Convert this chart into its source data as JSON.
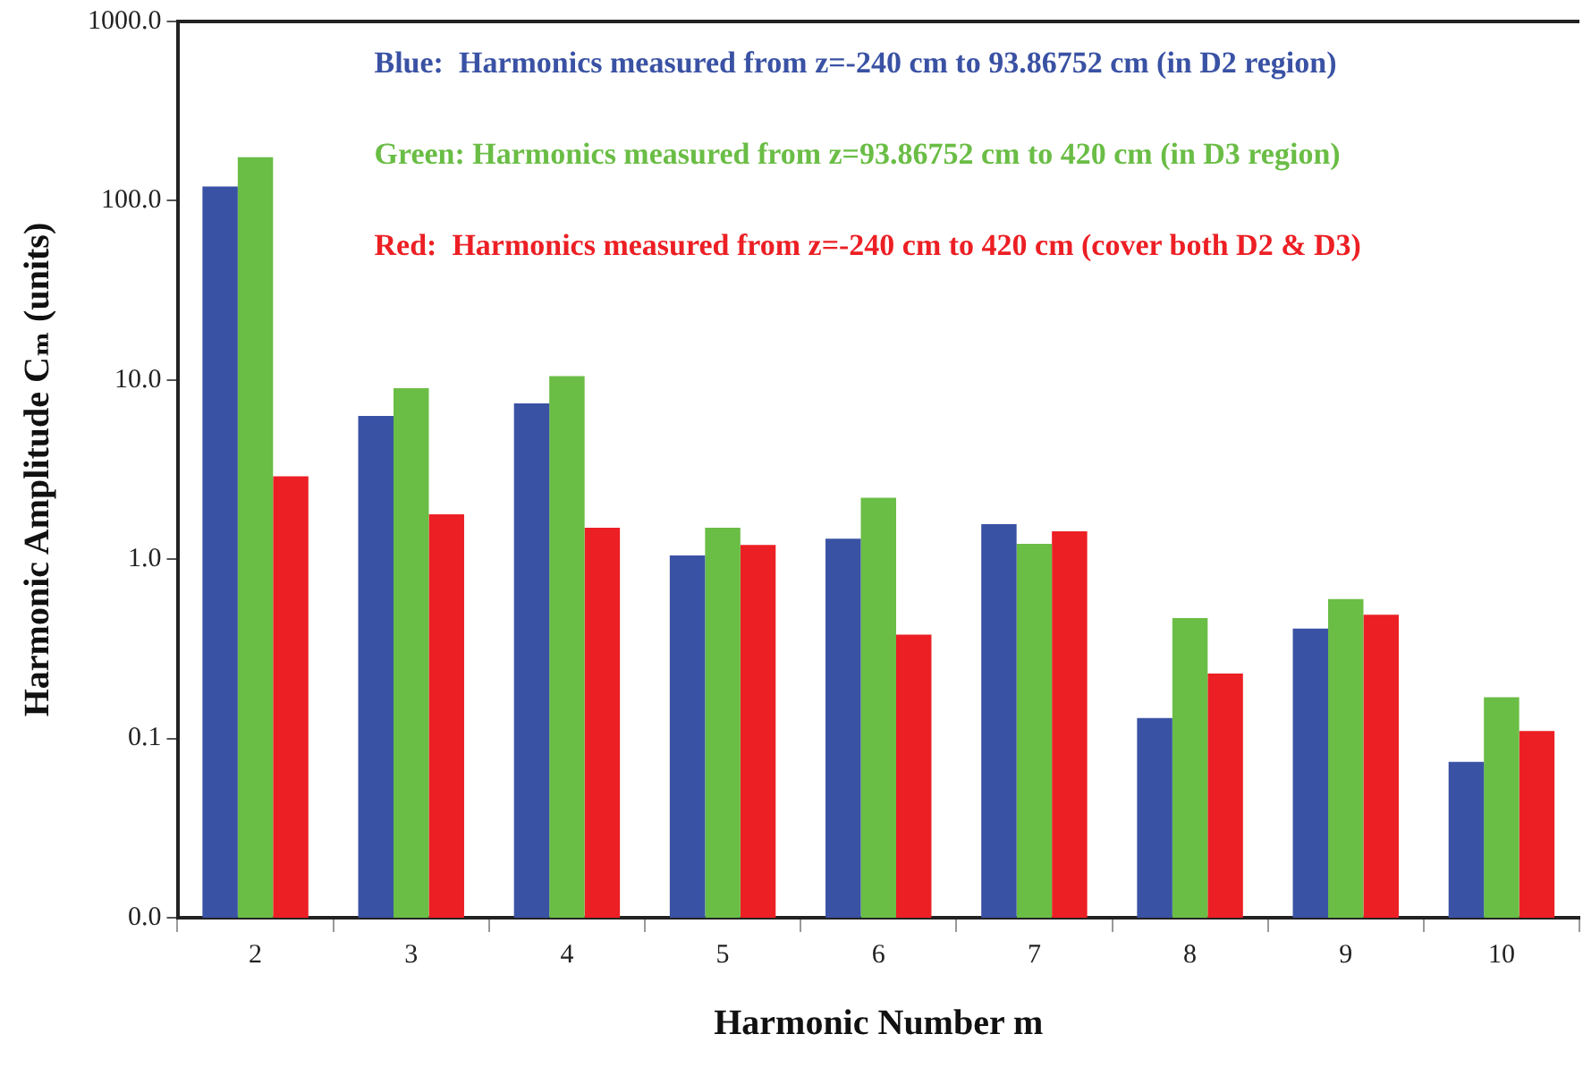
{
  "chart_data": {
    "type": "bar",
    "xlabel": "Harmonic Number m",
    "ylabel": "Harmonic Amplitude Cₘ (units)",
    "categories": [
      "2",
      "3",
      "4",
      "5",
      "6",
      "7",
      "8",
      "9",
      "10"
    ],
    "series": [
      {
        "name": "Blue:  Harmonics measured from z=-240 cm to 93.86752 cm (in D2 region)",
        "color": "#3a52a4",
        "values": [
          120,
          6.3,
          7.4,
          1.05,
          1.3,
          1.57,
          0.13,
          0.41,
          0.074
        ]
      },
      {
        "name": "Green: Harmonics measured from z=93.86752 cm to 420 cm (in D3 region)",
        "color": "#6abd45",
        "values": [
          175,
          9.0,
          10.5,
          1.5,
          2.2,
          1.22,
          0.47,
          0.6,
          0.17
        ]
      },
      {
        "name": "Red:  Harmonics measured from z=-240 cm to 420 cm (cover both D2 & D3)",
        "color": "#ec1f24",
        "values": [
          2.9,
          1.78,
          1.5,
          1.2,
          0.38,
          1.43,
          0.23,
          0.49,
          0.11
        ]
      }
    ],
    "log": "y",
    "ylim": [
      0.01,
      1000
    ],
    "yticks": [
      {
        "value": 0.01,
        "label": "0.0"
      },
      {
        "value": 0.1,
        "label": "0.1"
      },
      {
        "value": 1,
        "label": "1.0"
      },
      {
        "value": 10,
        "label": "10.0"
      },
      {
        "value": 100,
        "label": "100.0"
      },
      {
        "value": 1000,
        "label": "1000.0"
      }
    ],
    "grid": false,
    "legend": "top"
  }
}
